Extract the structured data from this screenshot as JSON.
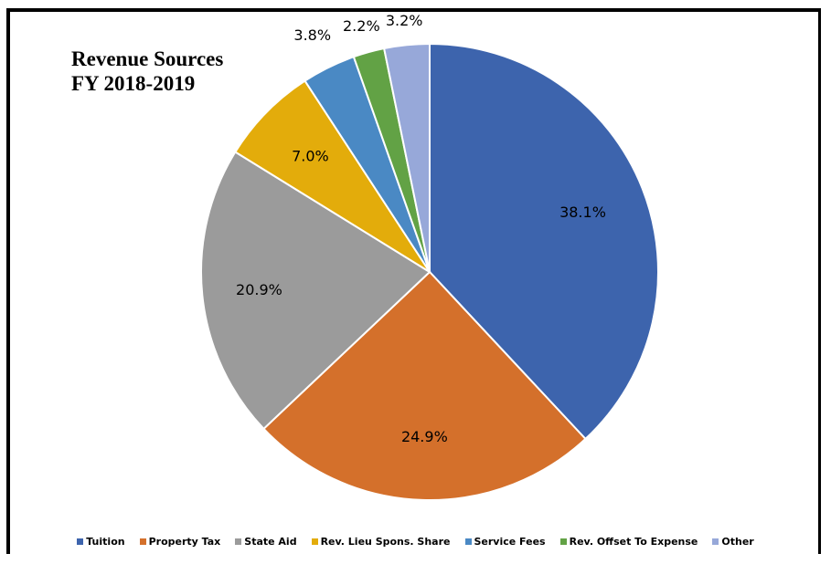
{
  "chart_data": {
    "type": "pie",
    "title_lines": [
      "Revenue Sources",
      "FY 2018-2019"
    ],
    "slices": [
      {
        "name": "Tuition",
        "value": 38.1,
        "label": "38.1%",
        "color": "#3d64ad"
      },
      {
        "name": "Property Tax",
        "value": 24.9,
        "label": "24.9%",
        "color": "#d4702b"
      },
      {
        "name": "State Aid",
        "value": 20.9,
        "label": "20.9%",
        "color": "#9b9b9b"
      },
      {
        "name": "Rev. Lieu Spons. Share",
        "value": 7.0,
        "label": "7.0%",
        "color": "#e3ac0b"
      },
      {
        "name": "Service Fees",
        "value": 3.8,
        "label": "3.8%",
        "color": "#4a89c4"
      },
      {
        "name": "Rev. Offset To Expense",
        "value": 2.2,
        "label": "2.2%",
        "color": "#62a245"
      },
      {
        "name": "Other",
        "value": 3.2,
        "label": "3.2%",
        "color": "#97a8d9"
      }
    ],
    "legend_position": "bottom"
  }
}
